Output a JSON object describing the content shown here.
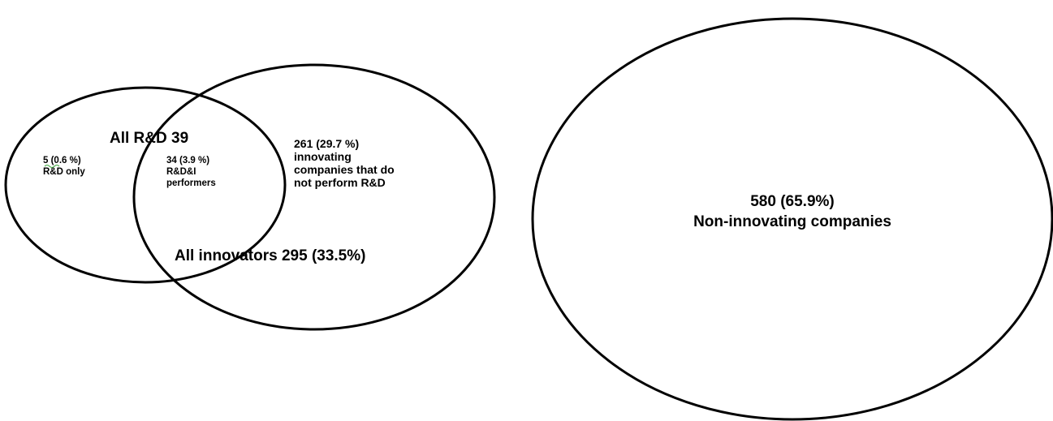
{
  "colors": {
    "stroke": "#000000",
    "background": "#ffffff",
    "spellcheck_underline": "#3aa33a"
  },
  "circles": {
    "rnd": {
      "label": "All R&D 39"
    },
    "innovators": {
      "label": "All innovators 295 (33.5%)"
    },
    "non_innovating": {
      "value_line": "580 (65.9%)",
      "name_line": "Non-innovating companies"
    }
  },
  "regions": {
    "rnd_only": {
      "line1": "5 (0.6 %)",
      "line2": "R&D only"
    },
    "rnd_and_innovation": {
      "line1": "34 (3.9 %)",
      "line2": "R&D&I",
      "line3": "performers"
    },
    "innovation_only": {
      "line1": "261 (29.7 %)",
      "line2": "innovating",
      "line3": "companies that do",
      "line4": "not perform R&D"
    }
  }
}
